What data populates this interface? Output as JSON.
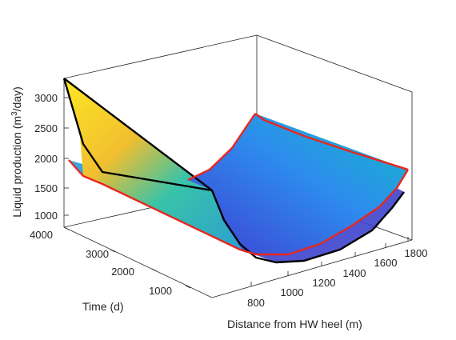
{
  "chart_data": {
    "type": "surface3d",
    "title": "",
    "xlabel": "Distance from HW heel (m)",
    "ylabel": "Time (d)",
    "zlabel_main": "Liquid production (m",
    "zlabel_sup": "3",
    "zlabel_tail": "/day)",
    "x_ticks": [
      "800",
      "1000",
      "1200",
      "1400",
      "1600",
      "1800"
    ],
    "y_ticks": [
      "1000",
      "2000",
      "3000",
      "4000"
    ],
    "z_ticks": [
      "1000",
      "1500",
      "2000",
      "2500",
      "3000"
    ],
    "xlim": [
      600,
      1900
    ],
    "ylim": [
      0,
      4000
    ],
    "zlim": [
      900,
      3300
    ],
    "grid": false,
    "colormap": "parula",
    "series": [
      {
        "label": "curve at x = 600 m",
        "color": "#000000",
        "y": [
          0,
          4000
        ],
        "z": [
          1550,
          3350
        ]
      },
      {
        "label": "curve at y = 4000 d",
        "color": "#000000",
        "x": [
          600,
          800,
          1000,
          1200,
          1400,
          1600,
          1800
        ],
        "z": [
          3350,
          2400,
          2050,
          1900,
          2000,
          2300,
          2900
        ]
      },
      {
        "label": "curve at x = 1900 m",
        "color": "#e8261e",
        "y": [
          0,
          4000
        ],
        "z": [
          1950,
          2900
        ]
      },
      {
        "label": "curve at y = 0 d",
        "color": "#e8261e",
        "x": [
          600,
          800,
          1000,
          1200,
          1400,
          1600,
          1800
        ],
        "z": [
          1550,
          1450,
          1350,
          1320,
          1400,
          1550,
          1850
        ]
      }
    ]
  }
}
